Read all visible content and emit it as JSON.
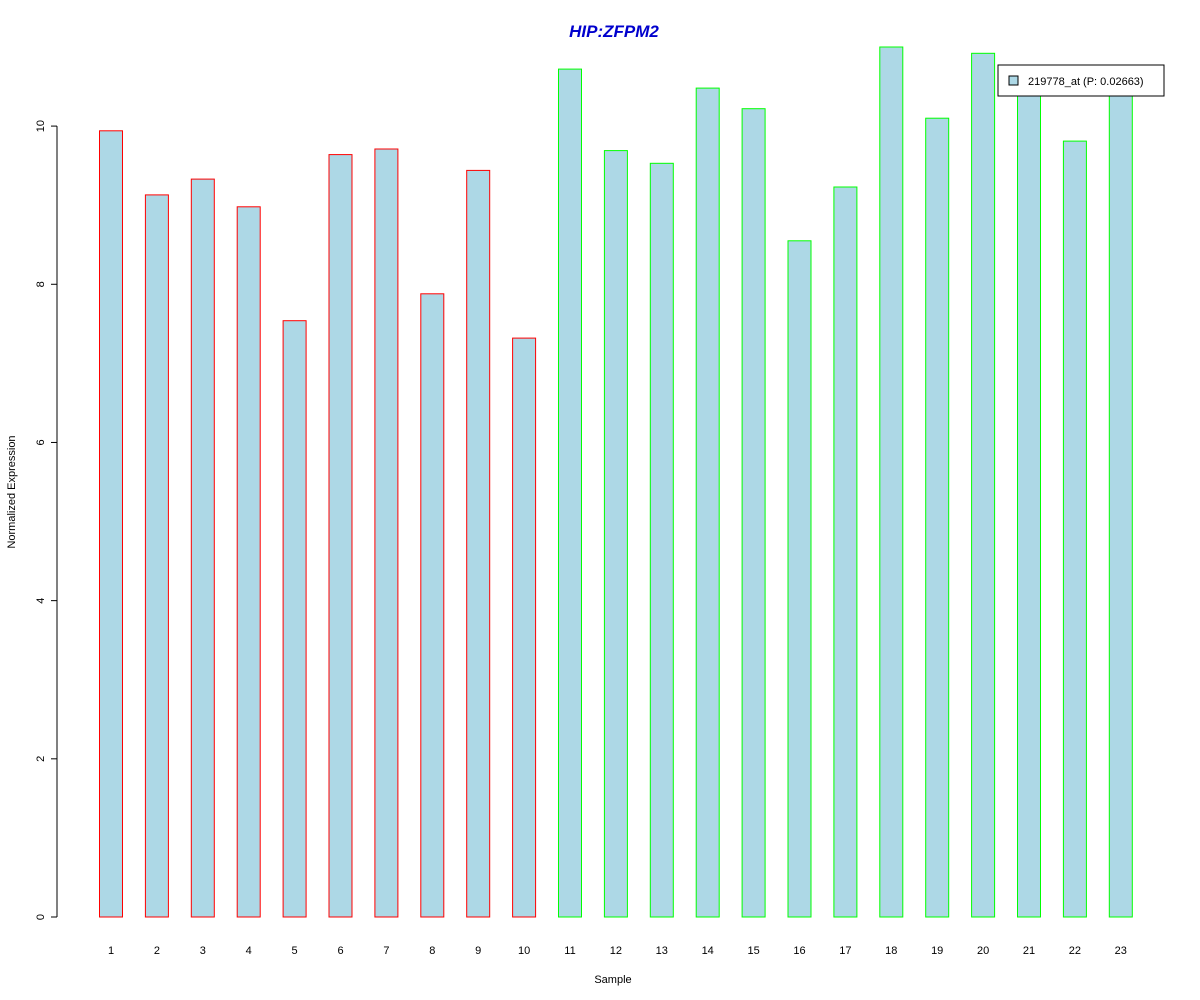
{
  "chart_data": {
    "type": "bar",
    "title": "HIP:ZFPM2",
    "xlabel": "Sample",
    "ylabel": "Normalized Expression",
    "categories": [
      "1",
      "2",
      "3",
      "4",
      "5",
      "6",
      "7",
      "8",
      "9",
      "10",
      "11",
      "12",
      "13",
      "14",
      "15",
      "16",
      "17",
      "18",
      "19",
      "20",
      "21",
      "22",
      "23"
    ],
    "series": [
      {
        "name": "219778_at (P: 0.02663)",
        "values": [
          9.94,
          9.13,
          9.33,
          8.98,
          7.54,
          9.64,
          9.71,
          7.88,
          9.44,
          7.32,
          10.72,
          9.69,
          9.53,
          10.48,
          10.22,
          8.55,
          9.23,
          11.0,
          10.1,
          10.92,
          10.46,
          9.81,
          10.58
        ]
      }
    ],
    "group_outline_colors": [
      "#ff0000",
      "#ff0000",
      "#ff0000",
      "#ff0000",
      "#ff0000",
      "#ff0000",
      "#ff0000",
      "#ff0000",
      "#ff0000",
      "#ff0000",
      "#00ff00",
      "#00ff00",
      "#00ff00",
      "#00ff00",
      "#00ff00",
      "#00ff00",
      "#00ff00",
      "#00ff00",
      "#00ff00",
      "#00ff00",
      "#00ff00",
      "#00ff00",
      "#00ff00"
    ],
    "yticks": [
      0,
      2,
      4,
      6,
      8,
      10
    ],
    "ylim": [
      0,
      11
    ],
    "grid": false,
    "legend_placement": "top-right",
    "colors": {
      "bar_fill": "#add8e6",
      "title": "#0000cd",
      "axis": "#000000"
    }
  }
}
